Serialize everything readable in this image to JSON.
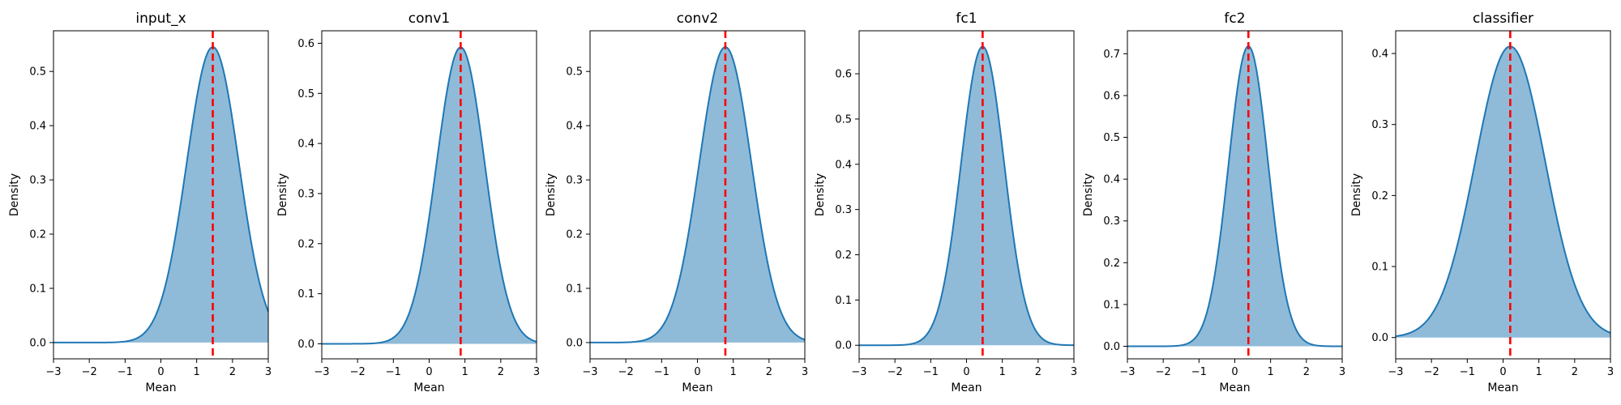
{
  "chart_data": [
    {
      "type": "area",
      "title": "input_x",
      "xlabel": "Mean",
      "ylabel": "Density",
      "xlim": [
        -3,
        3
      ],
      "ylim": [
        -0.03,
        0.575
      ],
      "xticks": [
        "−3",
        "−2",
        "−1",
        "0",
        "1",
        "2",
        "3"
      ],
      "yticks": [
        "0.0",
        "0.1",
        "0.2",
        "0.3",
        "0.4",
        "0.5"
      ],
      "ytick_values": [
        0,
        0.1,
        0.2,
        0.3,
        0.4,
        0.5
      ],
      "mean": 1.45,
      "std": 0.73,
      "peak_density": 0.545
    },
    {
      "type": "area",
      "title": "conv1",
      "xlabel": "Mean",
      "ylabel": "Density",
      "xlim": [
        -3,
        3
      ],
      "ylim": [
        -0.03,
        0.625
      ],
      "xticks": [
        "−3",
        "−2",
        "−1",
        "0",
        "1",
        "2",
        "3"
      ],
      "yticks": [
        "0.0",
        "0.1",
        "0.2",
        "0.3",
        "0.4",
        "0.5",
        "0.6"
      ],
      "ytick_values": [
        0,
        0.1,
        0.2,
        0.3,
        0.4,
        0.5,
        0.6
      ],
      "mean": 0.88,
      "std": 0.675,
      "peak_density": 0.592
    },
    {
      "type": "area",
      "title": "conv2",
      "xlabel": "Mean",
      "ylabel": "Density",
      "xlim": [
        -3,
        3
      ],
      "ylim": [
        -0.03,
        0.575
      ],
      "xticks": [
        "−3",
        "−2",
        "−1",
        "0",
        "1",
        "2",
        "3"
      ],
      "yticks": [
        "0.0",
        "0.1",
        "0.2",
        "0.3",
        "0.4",
        "0.5"
      ],
      "ytick_values": [
        0,
        0.1,
        0.2,
        0.3,
        0.4,
        0.5
      ],
      "mean": 0.78,
      "std": 0.73,
      "peak_density": 0.545
    },
    {
      "type": "area",
      "title": "fc1",
      "xlabel": "Mean",
      "ylabel": "Density",
      "xlim": [
        -3,
        3
      ],
      "ylim": [
        -0.03,
        0.695
      ],
      "xticks": [
        "−3",
        "−2",
        "−1",
        "0",
        "1",
        "2",
        "3"
      ],
      "yticks": [
        "0.0",
        "0.1",
        "0.2",
        "0.3",
        "0.4",
        "0.5",
        "0.6"
      ],
      "ytick_values": [
        0,
        0.1,
        0.2,
        0.3,
        0.4,
        0.5,
        0.6
      ],
      "mean": 0.45,
      "std": 0.605,
      "peak_density": 0.66
    },
    {
      "type": "area",
      "title": "fc2",
      "xlabel": "Mean",
      "ylabel": "Density",
      "xlim": [
        -3,
        3
      ],
      "ylim": [
        -0.03,
        0.755
      ],
      "xticks": [
        "−3",
        "−2",
        "−1",
        "0",
        "1",
        "2",
        "3"
      ],
      "yticks": [
        "0.0",
        "0.1",
        "0.2",
        "0.3",
        "0.4",
        "0.5",
        "0.6",
        "0.7"
      ],
      "ytick_values": [
        0,
        0.1,
        0.2,
        0.3,
        0.4,
        0.5,
        0.6,
        0.7
      ],
      "mean": 0.38,
      "std": 0.555,
      "peak_density": 0.718
    },
    {
      "type": "area",
      "title": "classifier",
      "xlabel": "Mean",
      "ylabel": "Density",
      "xlim": [
        -3,
        3
      ],
      "ylim": [
        -0.03,
        0.432
      ],
      "xticks": [
        "−3",
        "−2",
        "−1",
        "0",
        "1",
        "2",
        "3"
      ],
      "yticks": [
        "0.0",
        "0.1",
        "0.2",
        "0.3",
        "0.4"
      ],
      "ytick_values": [
        0,
        0.1,
        0.2,
        0.3,
        0.4
      ],
      "mean": 0.2,
      "std": 0.975,
      "peak_density": 0.41
    }
  ],
  "colors": {
    "fill": "#1f77b4",
    "line": "#1f77b4",
    "mean_line": "#ff0000",
    "axis": "#000000"
  }
}
